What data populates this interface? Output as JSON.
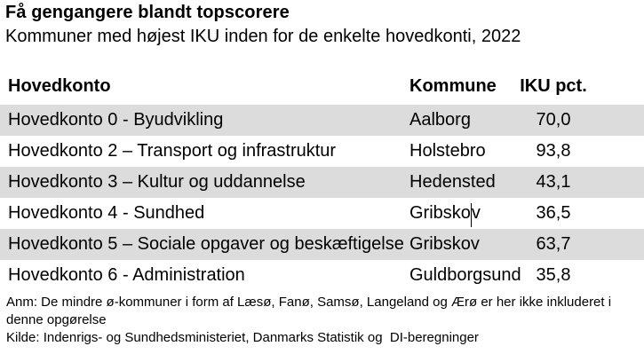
{
  "title": "Få gengangere blandt topscorere",
  "subtitle": "Kommuner med højest IKU inden for de enkelte hovedkonti, 2022",
  "table": {
    "headers": {
      "hovedkonto": "Hovedkonto",
      "kommune": "Kommune",
      "iku": "IKU pct."
    },
    "rows": [
      {
        "hovedkonto": "Hovedkonto 0 - Byudvikling",
        "kommune": "Aalborg",
        "iku": "70,0"
      },
      {
        "hovedkonto": "Hovedkonto 2 – Transport og infrastruktur",
        "kommune": "Holstebro",
        "iku": "93,8"
      },
      {
        "hovedkonto": "Hovedkonto 3 – Kultur og uddannelse",
        "kommune": "Hedensted",
        "iku": "43,1"
      },
      {
        "hovedkonto": "Hovedkonto 4 - Sundhed",
        "kommune": "Gribskov",
        "kommune_caret": {
          "before": "Gribsko",
          "after": "v"
        },
        "iku": "36,5"
      },
      {
        "hovedkonto": "Hovedkonto 5 – Sociale opgaver og beskæftigelse",
        "kommune": "Gribskov",
        "iku": "63,7"
      },
      {
        "hovedkonto": "Hovedkonto 6 - Administration",
        "kommune": "Guldborgsund",
        "iku": "35,8"
      }
    ]
  },
  "footnote": "Anm: De mindre ø-kommuner i form af Læsø, Fanø, Samsø, Langeland og Ærø er her ikke inkluderet i denne opgørelse",
  "source": "Kilde: Indenrigs- og Sundhedsministeriet, Danmarks Statistik og  DI-beregninger",
  "colors": {
    "row_shade": "#dcdcdc",
    "text": "#000000",
    "background": "#ffffff"
  },
  "chart_data": {
    "type": "table",
    "title": "Få gengangere blandt topscorere",
    "subtitle": "Kommuner med højest IKU inden for de enkelte hovedkonti, 2022",
    "columns": [
      "Hovedkonto",
      "Kommune",
      "IKU pct."
    ],
    "rows": [
      [
        "Hovedkonto 0 - Byudvikling",
        "Aalborg",
        "70,0"
      ],
      [
        "Hovedkonto 2 – Transport og infrastruktur",
        "Holstebro",
        "93,8"
      ],
      [
        "Hovedkonto 3 – Kultur og uddannelse",
        "Hedensted",
        "43,1"
      ],
      [
        "Hovedkonto 4 - Sundhed",
        "Gribskov",
        "36,5"
      ],
      [
        "Hovedkonto 5 – Sociale opgaver og beskæftigelse",
        "Gribskov",
        "63,7"
      ],
      [
        "Hovedkonto 6 - Administration",
        "Guldborgsund",
        "35,8"
      ]
    ],
    "iku_values_numeric": [
      70.0,
      93.8,
      43.1,
      36.5,
      63.7,
      35.8
    ],
    "note": "Anm: De mindre ø-kommuner i form af Læsø, Fanø, Samsø, Langeland og Ærø er her ikke inkluderet i denne opgørelse",
    "source": "Kilde: Indenrigs- og Sundhedsministeriet, Danmarks Statistik og  DI-beregninger",
    "layout_hints": {
      "shaded_row_indices": [
        0,
        2,
        4
      ],
      "shade_color": "#dcdcdc"
    }
  }
}
